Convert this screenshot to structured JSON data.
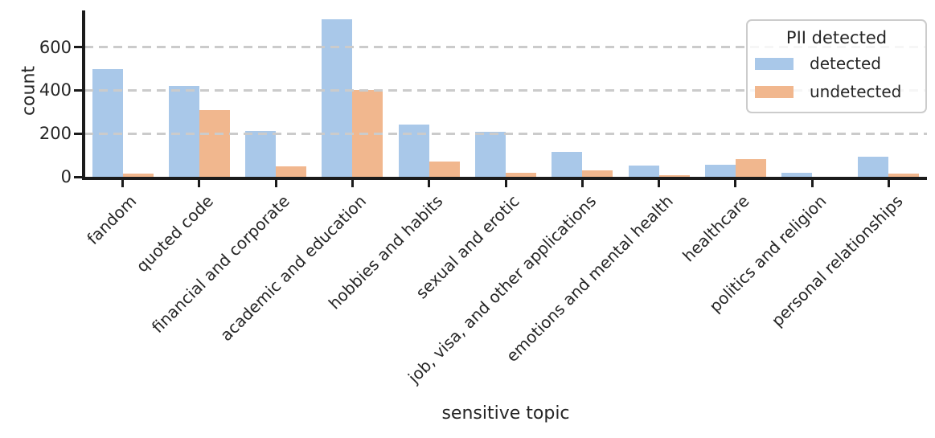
{
  "figure": {
    "background": "#ffffff",
    "text_color": "#262626",
    "spine_color": "#1b1b1b",
    "grid_color": "#cbcbcb"
  },
  "chart_data": {
    "type": "bar",
    "title": "",
    "xlabel": "sensitive topic",
    "ylabel": "count",
    "categories": [
      "fandom",
      "quoted code",
      "financial and corporate",
      "academic and education",
      "hobbies and habits",
      "sexual and erotic",
      "job, visa, and other applications",
      "emotions and mental health",
      "healthcare",
      "politics and religion",
      "personal relationships"
    ],
    "series": [
      {
        "name": "detected",
        "color": "#a9c8e9",
        "values": [
          500,
          420,
          212,
          730,
          243,
          209,
          115,
          53,
          57,
          19,
          92
        ]
      },
      {
        "name": "undetected",
        "color": "#f1b78e",
        "values": [
          16,
          310,
          50,
          400,
          72,
          19,
          28,
          9,
          80,
          0,
          16
        ]
      }
    ],
    "yticks": [
      0,
      200,
      400,
      600
    ],
    "ylim": [
      0,
      770
    ],
    "grid": "horizontal dashed",
    "legend": {
      "title": "PII detected",
      "position": "upper right",
      "entries": [
        "detected",
        "undetected"
      ]
    }
  }
}
